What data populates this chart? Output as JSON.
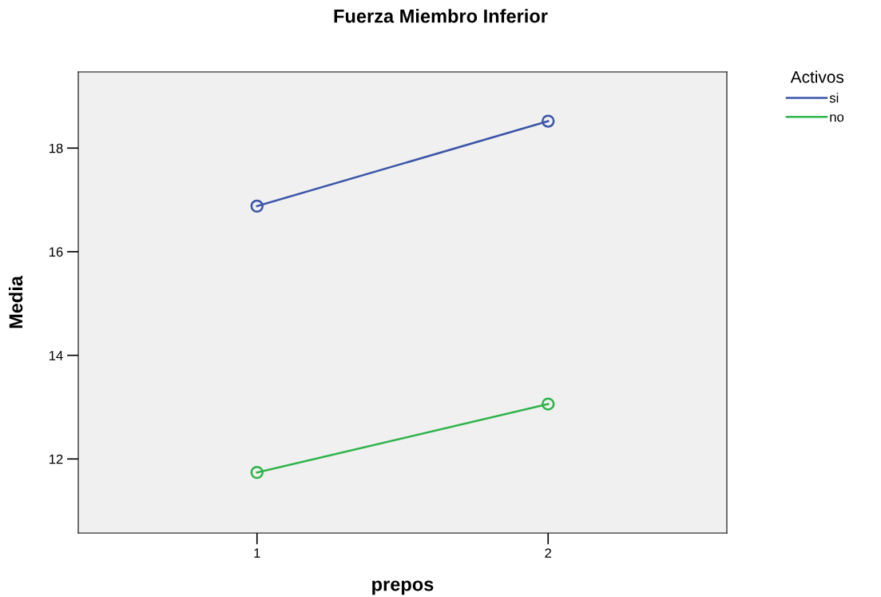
{
  "chart_data": {
    "type": "line",
    "title": "Fuerza Miembro Inferior",
    "xlabel": "prepos",
    "ylabel": "Media",
    "legend_title": "Activos",
    "categories": [
      "1",
      "2"
    ],
    "series": [
      {
        "name": "si",
        "color": "#3b54a8",
        "values": [
          16.88,
          18.52
        ]
      },
      {
        "name": "no",
        "color": "#2db34a",
        "values": [
          11.74,
          13.06
        ]
      }
    ],
    "ylim": [
      10.57,
      19.47
    ],
    "yticks": [
      12,
      14,
      16,
      18
    ],
    "grid": false,
    "legend": "top right",
    "marker": "circle",
    "line_style": "solid"
  }
}
